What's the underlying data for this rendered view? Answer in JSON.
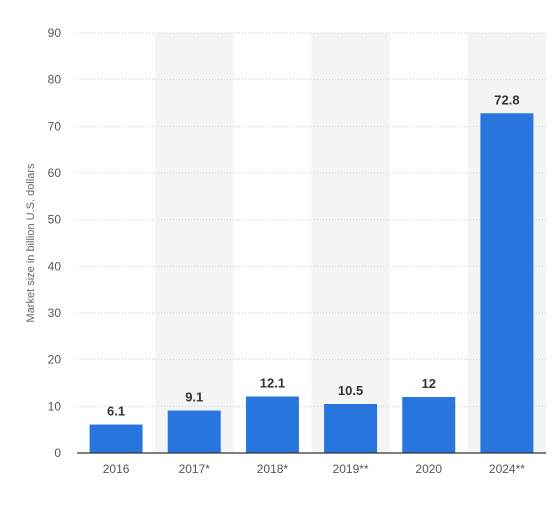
{
  "chart_data": {
    "type": "bar",
    "categories": [
      "2016",
      "2017*",
      "2018*",
      "2019**",
      "2020",
      "2024**"
    ],
    "values": [
      6.1,
      9.1,
      12.1,
      10.5,
      12,
      72.8
    ],
    "value_labels": [
      "6.1",
      "9.1",
      "12.1",
      "10.5",
      "12",
      "72.8"
    ],
    "title": "",
    "xlabel": "",
    "ylabel": "Market size in billion U.S. dollars",
    "ylim": [
      0,
      90
    ],
    "yticks": [
      "0",
      "10",
      "20",
      "30",
      "40",
      "50",
      "60",
      "70",
      "80",
      "90"
    ],
    "grid": true,
    "legend": "none",
    "colors": {
      "bar": "#2876dd",
      "band": "#f4f4f4",
      "grid": "#cccccc",
      "axis": "#333333"
    }
  }
}
